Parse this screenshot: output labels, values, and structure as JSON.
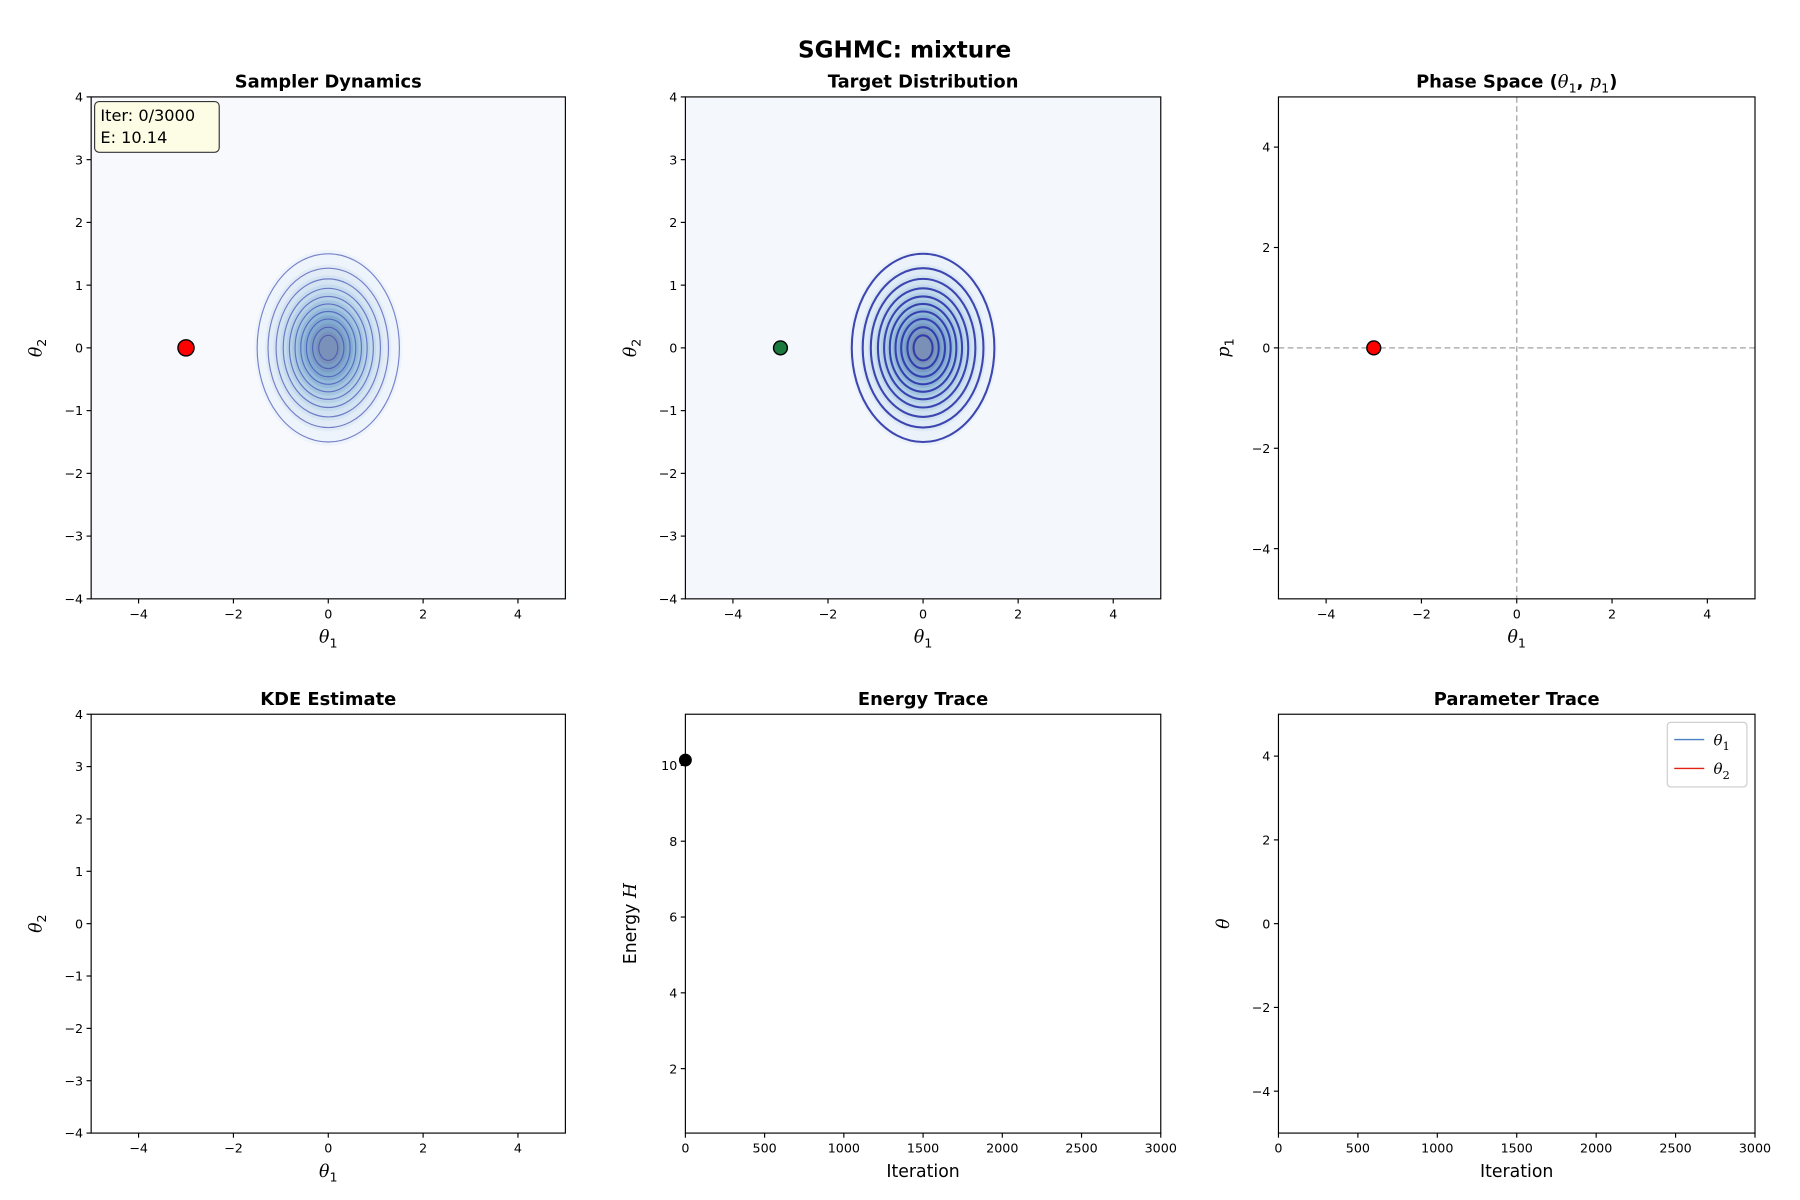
{
  "suptitle": "SGHMC: mixture",
  "chart_data": [
    {
      "id": "sampler",
      "type": "contour+scatter",
      "title": "Sampler Dynamics",
      "xlabel": "θ1",
      "ylabel": "θ2",
      "xlim": [
        -5,
        5
      ],
      "ylim": [
        -4,
        4
      ],
      "xticks": [
        -4,
        -2,
        0,
        2,
        4
      ],
      "yticks": [
        -4,
        -3,
        -2,
        -1,
        0,
        1,
        2,
        3,
        4
      ],
      "background": "#f7f9fd",
      "contour_center": [
        0,
        0
      ],
      "contour_radii": [
        1.5,
        1.27,
        1.1,
        0.95,
        0.82,
        0.7,
        0.58,
        0.46,
        0.33,
        0.2
      ],
      "contour_color": "#3a44b0",
      "points": [
        {
          "x": -3,
          "y": 0,
          "color": "#ff0000"
        }
      ],
      "info_box": {
        "lines": [
          "Iter: 0/3000",
          "E: 10.14"
        ],
        "background": "#fdfde6"
      }
    },
    {
      "id": "target",
      "type": "contour+scatter",
      "title": "Target Distribution",
      "xlabel": "θ1",
      "ylabel": "θ2",
      "xlim": [
        -5,
        5
      ],
      "ylim": [
        -4,
        4
      ],
      "xticks": [
        -4,
        -2,
        0,
        2,
        4
      ],
      "yticks": [
        -4,
        -3,
        -2,
        -1,
        0,
        1,
        2,
        3,
        4
      ],
      "background": "#f4f8fc",
      "contour_center": [
        0,
        0
      ],
      "contour_radii": [
        1.5,
        1.27,
        1.1,
        0.95,
        0.82,
        0.7,
        0.58,
        0.46,
        0.33,
        0.2
      ],
      "contour_color": "#2b34a8",
      "points": [
        {
          "x": -3,
          "y": 0,
          "color": "#1a7a3c"
        }
      ]
    },
    {
      "id": "phase",
      "type": "scatter",
      "title": "Phase Space (θ1, p1)",
      "xlabel": "θ1",
      "ylabel": "p1",
      "xlim": [
        -5,
        5
      ],
      "ylim": [
        -5,
        5
      ],
      "xticks": [
        -4,
        -2,
        0,
        2,
        4
      ],
      "yticks": [
        -4,
        -2,
        0,
        2,
        4
      ],
      "reference_lines": {
        "x": 0,
        "y": 0,
        "style": "dashed",
        "color": "#b0b0b0"
      },
      "points": [
        {
          "x": -3,
          "y": 0,
          "color": "#ff0000"
        }
      ]
    },
    {
      "id": "kde",
      "type": "heatmap",
      "title": "KDE Estimate",
      "xlabel": "θ1",
      "ylabel": "θ2",
      "xlim": [
        -5,
        5
      ],
      "ylim": [
        -4,
        4
      ],
      "xticks": [
        -4,
        -2,
        0,
        2,
        4
      ],
      "yticks": [
        -4,
        -3,
        -2,
        -1,
        0,
        1,
        2,
        3,
        4
      ]
    },
    {
      "id": "energy",
      "type": "line",
      "title": "Energy Trace",
      "xlabel": "Iteration",
      "ylabel": "Energy H",
      "xlim": [
        0,
        3000
      ],
      "ylim": [
        0.3,
        11.35
      ],
      "xticks": [
        0,
        500,
        1000,
        1500,
        2000,
        2500,
        3000
      ],
      "yticks": [
        2,
        4,
        6,
        8,
        10
      ],
      "points": [
        {
          "x": 0,
          "y": 10.14,
          "color": "#000000"
        }
      ]
    },
    {
      "id": "trace",
      "type": "line",
      "title": "Parameter Trace",
      "xlabel": "Iteration",
      "ylabel": "θ",
      "xlim": [
        0,
        3000
      ],
      "ylim": [
        -5,
        5
      ],
      "xticks": [
        0,
        500,
        1000,
        1500,
        2000,
        2500,
        3000
      ],
      "yticks": [
        -4,
        -2,
        0,
        2,
        4
      ],
      "legend": {
        "position": "upper right",
        "entries": [
          {
            "label": "θ1",
            "color": "#4a7fc1"
          },
          {
            "label": "θ2",
            "color": "#e02010"
          }
        ]
      },
      "series": [
        {
          "name": "θ1",
          "x": [],
          "y": []
        },
        {
          "name": "θ2",
          "x": [],
          "y": []
        }
      ]
    }
  ]
}
